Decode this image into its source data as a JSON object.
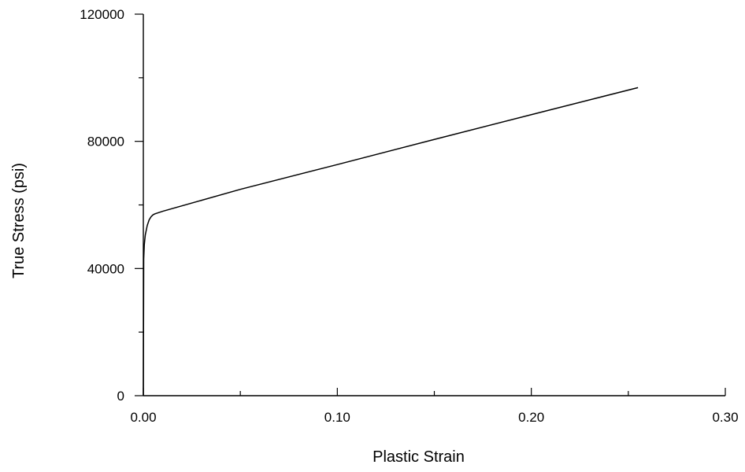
{
  "chart_data": {
    "type": "line",
    "title": "",
    "xlabel": "Plastic Strain",
    "ylabel": "True Stress (psi)",
    "xlim": [
      0.0,
      0.3
    ],
    "ylim": [
      0,
      120000
    ],
    "x_ticks": [
      0.0,
      0.1,
      0.2,
      0.3
    ],
    "x_tick_labels": [
      "0.00",
      "0.10",
      "0.20",
      "0.30"
    ],
    "x_minor_ticks": [
      0.05,
      0.15,
      0.25
    ],
    "y_ticks": [
      0,
      40000,
      80000,
      120000
    ],
    "y_tick_labels": [
      "0",
      "40000",
      "80000",
      "120000"
    ],
    "y_minor_ticks": [
      20000,
      60000,
      100000
    ],
    "grid": false,
    "series": [
      {
        "x": [
          0.0,
          0.0002,
          0.0005,
          0.001,
          0.002,
          0.003,
          0.004,
          0.005,
          0.006,
          0.01,
          0.05,
          0.1,
          0.15,
          0.2,
          0.255
        ],
        "y": [
          0,
          43000,
          47500,
          50500,
          53500,
          55300,
          56300,
          56900,
          57200,
          58000,
          64900,
          72700,
          80600,
          88400,
          96900
        ]
      }
    ]
  }
}
